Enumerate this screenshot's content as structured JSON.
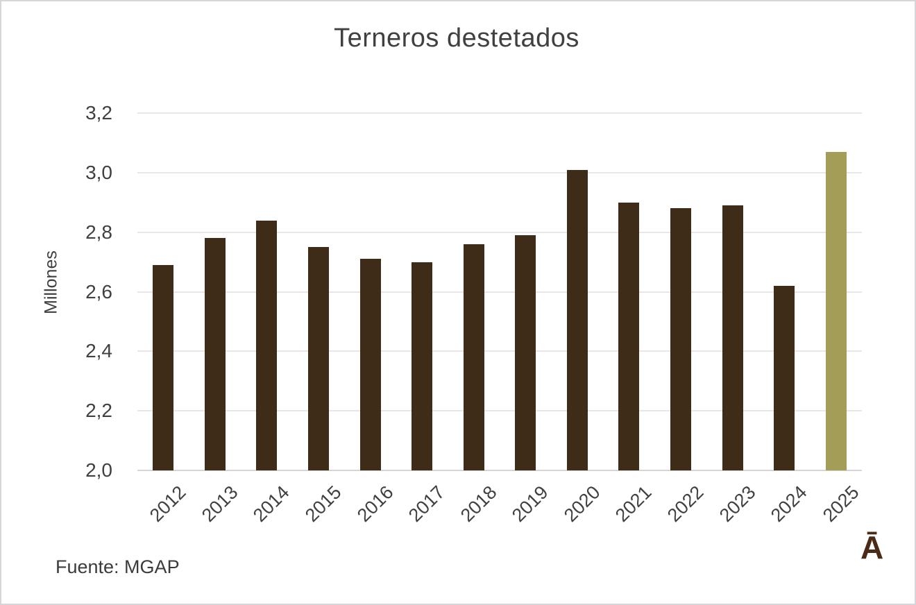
{
  "chart_data": {
    "type": "bar",
    "title": "Terneros destetados",
    "ylabel": "Millones",
    "xlabel": "",
    "categories": [
      "2012",
      "2013",
      "2014",
      "2015",
      "2016",
      "2017",
      "2018",
      "2019",
      "2020",
      "2021",
      "2022",
      "2023",
      "2024",
      "2025"
    ],
    "values": [
      2.69,
      2.78,
      2.84,
      2.75,
      2.71,
      2.7,
      2.76,
      2.79,
      3.01,
      2.9,
      2.88,
      2.89,
      2.62,
      3.07
    ],
    "ylim": [
      2.0,
      3.2
    ],
    "yticks": [
      {
        "value": 3.2,
        "label": "3,2"
      },
      {
        "value": 3.0,
        "label": "3,0"
      },
      {
        "value": 2.8,
        "label": "2,8"
      },
      {
        "value": 2.6,
        "label": "2,6"
      },
      {
        "value": 2.4,
        "label": "2,4"
      },
      {
        "value": 2.2,
        "label": "2,2"
      },
      {
        "value": 2.0,
        "label": "2,0"
      }
    ],
    "grid": true,
    "legend": false,
    "bar_color": "#3e2b18",
    "highlight_index": 13,
    "highlight_color": "#a39d57",
    "x_labels_rotation_deg": -45,
    "decimal_separator": ","
  },
  "source": {
    "label": "Fuente: MGAP"
  },
  "logo": {
    "glyph": "Ā",
    "color": "#4b2b15"
  },
  "colors": {
    "title_text": "#404040",
    "axis_text": "#404040",
    "gridline": "#e9e6e6",
    "axis_line": "#d8d4d4",
    "canvas_border": "#d8d5da",
    "background": "#ffffff"
  }
}
